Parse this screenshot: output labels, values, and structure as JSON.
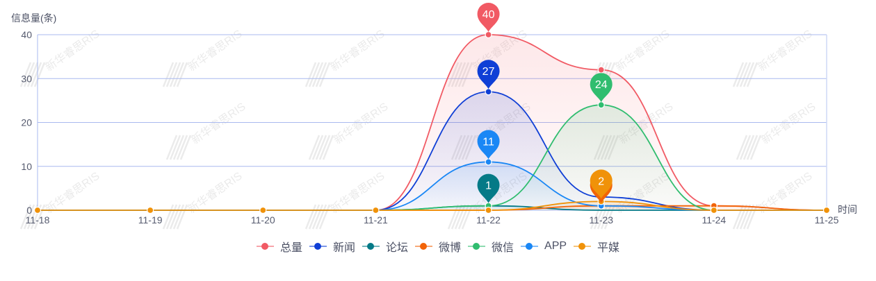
{
  "chart_data": {
    "type": "line",
    "smooth": true,
    "area": true,
    "title": "",
    "ylabel": "信息量(条)",
    "xlabel": "时间",
    "ylim": [
      0,
      40
    ],
    "yticks": [
      0,
      10,
      20,
      30,
      40
    ],
    "grid": true,
    "legend_position": "bottom",
    "categories": [
      "11-18",
      "11-19",
      "11-20",
      "11-21",
      "11-22",
      "11-23",
      "11-24",
      "11-25"
    ],
    "series": [
      {
        "name": "总量",
        "color": "#f15a64",
        "values": [
          0,
          0,
          0,
          0,
          40,
          32,
          1,
          0
        ],
        "max_label": "40"
      },
      {
        "name": "新闻",
        "color": "#0f3fd6",
        "values": [
          0,
          0,
          0,
          0,
          27,
          3,
          0,
          0
        ],
        "max_label": "27"
      },
      {
        "name": "论坛",
        "color": "#047a87",
        "values": [
          0,
          0,
          0,
          0,
          1,
          0,
          0,
          0
        ],
        "max_label": "1"
      },
      {
        "name": "微博",
        "color": "#f26307",
        "values": [
          0,
          0,
          0,
          0,
          0,
          1,
          1,
          0
        ],
        "max_label": "1"
      },
      {
        "name": "微信",
        "color": "#30bd6f",
        "values": [
          0,
          0,
          0,
          0,
          1,
          24,
          0,
          0
        ],
        "max_label": "24"
      },
      {
        "name": "APP",
        "color": "#1a87f5",
        "values": [
          0,
          0,
          0,
          0,
          11,
          1,
          0,
          0
        ],
        "max_label": "11"
      },
      {
        "name": "平媒",
        "color": "#f09209",
        "values": [
          0,
          0,
          0,
          0,
          0,
          2,
          0,
          0
        ],
        "max_label": "2"
      }
    ]
  },
  "watermark": "新华睿思RIS",
  "axis": {
    "y_name": "信息量(条)",
    "x_name": "时间",
    "grid_color": "#a9b9ef",
    "label_color": "#555a6e"
  }
}
